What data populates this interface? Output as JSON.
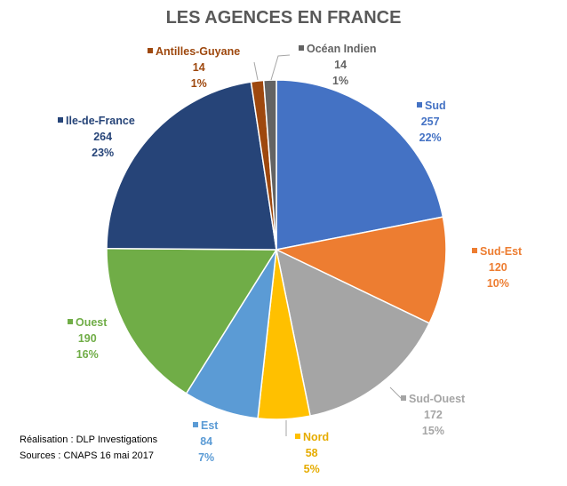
{
  "chart_data": {
    "type": "pie",
    "title": "LES AGENCES EN FRANCE",
    "categories": [
      "Sud",
      "Sud-Est",
      "Sud-Ouest",
      "Nord",
      "Est",
      "Ouest",
      "Ile-de-France",
      "Antilles-Guyane",
      "Océan Indien"
    ],
    "values": [
      257,
      120,
      172,
      58,
      84,
      190,
      264,
      14,
      14
    ],
    "percent_labels": [
      "22%",
      "10%",
      "15%",
      "5%",
      "7%",
      "16%",
      "23%",
      "1%",
      "1%"
    ],
    "colors": [
      "#4472c4",
      "#ed7d31",
      "#a5a5a5",
      "#ffc000",
      "#5b9bd5",
      "#70ad47",
      "#264478",
      "#9e480e",
      "#636363"
    ],
    "label_colors": [
      "#4472c4",
      "#ed7d31",
      "#a5a5a5",
      "#e6ac00",
      "#5b9bd5",
      "#70ad47",
      "#264478",
      "#9e480e",
      "#636363"
    ],
    "start": "12 o'clock",
    "direction": "clockwise",
    "legend": "none"
  },
  "notes": {
    "line1": "Réalisation : DLP Investigations",
    "line2": "Sources : CNAPS 16 mai 2017"
  }
}
